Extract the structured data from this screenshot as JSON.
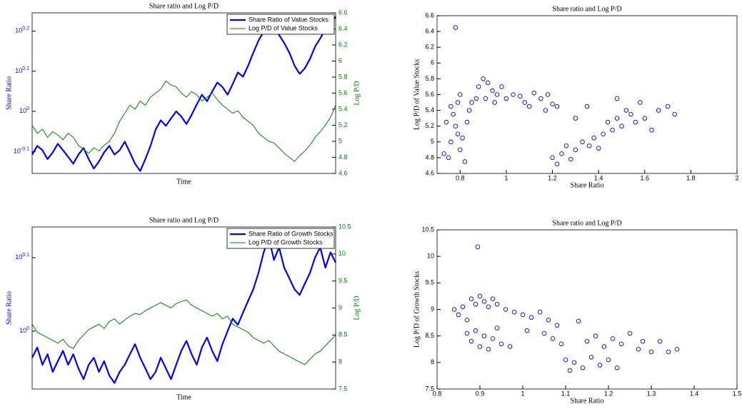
{
  "chart_data": [
    {
      "type": "line",
      "title": "Share ratio and Log P/D",
      "xlabel": "Time",
      "ylabel": "Share Ratio",
      "y2label": "Log P/D",
      "ylog": true,
      "legend": "northeast",
      "ylim": [
        0.7,
        1.76
      ],
      "yticks": [
        {
          "value": 0.794,
          "label": "10",
          "exponent": "-0.1"
        },
        {
          "value": 1,
          "label": "10",
          "exponent": "0"
        },
        {
          "value": 1.259,
          "label": "10",
          "exponent": "0.1"
        },
        {
          "value": 1.585,
          "label": "10",
          "exponent": "0.2"
        }
      ],
      "y2lim": [
        4.6,
        6.6
      ],
      "y2ticks": [
        4.6,
        4.8,
        5,
        5.2,
        5.4,
        5.6,
        5.8,
        6,
        6.2,
        6.4,
        6.6
      ],
      "series": [
        {
          "name": "Share Ratio of Value Stocks",
          "color": "#0000ff",
          "values": [
            0.78,
            0.82,
            0.8,
            0.76,
            0.79,
            0.83,
            0.8,
            0.77,
            0.74,
            0.78,
            0.81,
            0.76,
            0.72,
            0.75,
            0.79,
            0.82,
            0.78,
            0.8,
            0.84,
            0.79,
            0.74,
            0.71,
            0.76,
            0.82,
            0.9,
            0.95,
            0.92,
            0.96,
            1.0,
            0.97,
            0.93,
            0.98,
            1.04,
            1.1,
            1.06,
            1.12,
            1.18,
            1.15,
            1.1,
            1.17,
            1.25,
            1.22,
            1.3,
            1.4,
            1.5,
            1.58,
            1.66,
            1.6,
            1.55,
            1.48,
            1.4,
            1.3,
            1.24,
            1.28,
            1.35,
            1.45,
            1.52,
            1.6,
            1.66,
            1.72
          ]
        },
        {
          "name": "Log P/D of Value Stocks",
          "color": "#008000",
          "axis": "y2",
          "values": [
            5.2,
            5.1,
            5.15,
            5.05,
            5.12,
            5.08,
            5.02,
            5.1,
            5.05,
            4.95,
            4.9,
            4.85,
            4.92,
            4.88,
            4.95,
            5.0,
            5.1,
            5.25,
            5.35,
            5.45,
            5.4,
            5.5,
            5.45,
            5.55,
            5.6,
            5.65,
            5.75,
            5.7,
            5.68,
            5.6,
            5.55,
            5.62,
            5.58,
            5.5,
            5.55,
            5.6,
            5.52,
            5.45,
            5.4,
            5.35,
            5.38,
            5.3,
            5.25,
            5.2,
            5.1,
            5.05,
            5.0,
            4.98,
            4.92,
            4.85,
            4.8,
            4.75,
            4.82,
            4.88,
            4.95,
            5.05,
            5.12,
            5.2,
            5.3,
            5.45
          ]
        }
      ]
    },
    {
      "type": "scatter",
      "title": "Share ratio and Log P/D",
      "xlabel": "Share Ratio",
      "ylabel": "Log P/D of Value Stocks",
      "color": "#0000ff",
      "xlim": [
        0.7,
        2
      ],
      "xticks": [
        0.8,
        1,
        1.2,
        1.4,
        1.6,
        1.8,
        2
      ],
      "ylim": [
        4.6,
        6.6
      ],
      "yticks": [
        4.6,
        4.8,
        5,
        5.2,
        5.4,
        5.6,
        5.8,
        6,
        6.2,
        6.4,
        6.6
      ],
      "x": [
        0.78,
        0.73,
        0.75,
        0.76,
        0.78,
        0.77,
        0.79,
        0.8,
        0.82,
        0.81,
        0.83,
        0.84,
        0.79,
        0.76,
        0.74,
        0.8,
        0.85,
        0.87,
        0.88,
        0.9,
        0.92,
        0.94,
        0.91,
        0.96,
        0.98,
        0.95,
        1.0,
        1.03,
        1.06,
        1.08,
        1.1,
        1.12,
        1.15,
        1.18,
        1.2,
        1.17,
        1.22,
        1.2,
        1.22,
        1.24,
        1.26,
        1.28,
        1.3,
        1.33,
        1.36,
        1.38,
        1.4,
        1.42,
        1.44,
        1.46,
        1.48,
        1.5,
        1.52,
        1.54,
        1.56,
        1.58,
        1.6,
        1.63,
        1.66,
        1.7,
        1.73,
        1.35,
        1.3,
        1.48
      ],
      "values": [
        6.45,
        4.85,
        4.8,
        5.0,
        5.2,
        5.35,
        5.1,
        4.9,
        4.75,
        5.05,
        5.25,
        5.4,
        5.5,
        5.45,
        5.25,
        5.6,
        5.5,
        5.55,
        5.7,
        5.8,
        5.75,
        5.65,
        5.55,
        5.6,
        5.7,
        5.5,
        5.55,
        5.6,
        5.58,
        5.5,
        5.45,
        5.62,
        5.55,
        5.6,
        5.48,
        5.4,
        5.45,
        4.8,
        4.72,
        4.85,
        4.95,
        4.78,
        4.9,
        5.0,
        4.95,
        5.05,
        4.92,
        5.1,
        5.25,
        5.15,
        5.3,
        5.2,
        5.4,
        5.35,
        5.25,
        5.5,
        5.3,
        5.15,
        5.4,
        5.45,
        5.35,
        5.45,
        5.3,
        5.55
      ]
    },
    {
      "type": "line",
      "title": "Share ratio and Log P/D",
      "xlabel": "Time",
      "ylabel": "Share Ratio",
      "y2label": "Log P/D",
      "ylog": true,
      "legend": "northeast",
      "ylim": [
        0.834,
        1.386
      ],
      "yticks": [
        {
          "value": 1,
          "label": "10",
          "exponent": "0"
        },
        {
          "value": 1.259,
          "label": "10",
          "exponent": "0.1"
        }
      ],
      "y2lim": [
        7.5,
        10.5
      ],
      "y2ticks": [
        7.5,
        8,
        8.5,
        9,
        9.5,
        10,
        10.5
      ],
      "series": [
        {
          "name": "Share Ratio of Growth Stocks",
          "color": "#0000ff",
          "values": [
            0.92,
            0.95,
            0.9,
            0.93,
            0.88,
            0.91,
            0.94,
            0.9,
            0.93,
            0.89,
            0.86,
            0.9,
            0.92,
            0.88,
            0.91,
            0.87,
            0.85,
            0.88,
            0.9,
            0.93,
            0.96,
            0.92,
            0.89,
            0.86,
            0.88,
            0.92,
            0.89,
            0.86,
            0.9,
            0.94,
            0.97,
            0.93,
            0.9,
            0.95,
            0.98,
            0.94,
            0.91,
            0.96,
            1.0,
            1.04,
            1.02,
            1.06,
            1.1,
            1.14,
            1.2,
            1.28,
            1.34,
            1.25,
            1.3,
            1.22,
            1.18,
            1.14,
            1.12,
            1.16,
            1.2,
            1.26,
            1.3,
            1.22,
            1.28,
            1.24
          ]
        },
        {
          "name": "Log P/D of Growth Stocks",
          "color": "#008000",
          "axis": "y2",
          "values": [
            8.7,
            8.55,
            8.5,
            8.45,
            8.4,
            8.35,
            8.42,
            8.3,
            8.25,
            8.4,
            8.5,
            8.6,
            8.65,
            8.7,
            8.62,
            8.75,
            8.8,
            8.7,
            8.78,
            8.85,
            8.9,
            8.88,
            8.95,
            9.0,
            9.05,
            9.1,
            9.05,
            9.0,
            9.08,
            9.12,
            9.15,
            9.05,
            9.0,
            8.95,
            8.9,
            8.85,
            8.9,
            8.8,
            8.85,
            8.7,
            8.65,
            8.6,
            8.55,
            8.45,
            8.4,
            8.35,
            8.4,
            8.3,
            8.2,
            8.15,
            8.1,
            8.05,
            8.0,
            7.95,
            8.05,
            8.15,
            8.2,
            8.3,
            8.4,
            8.5
          ]
        }
      ]
    },
    {
      "type": "scatter",
      "title": "Share ratio and Log P/D",
      "xlabel": "Share Ratio",
      "ylabel": "Log P/D of Growth Stocks",
      "color": "#0000ff",
      "xlim": [
        0.8,
        1.5
      ],
      "xticks": [
        0.8,
        0.9,
        1,
        1.1,
        1.2,
        1.3,
        1.4,
        1.5
      ],
      "ylim": [
        7.5,
        10.5
      ],
      "yticks": [
        7.5,
        8,
        8.5,
        9,
        9.5,
        10,
        10.5
      ],
      "x": [
        0.895,
        0.84,
        0.85,
        0.86,
        0.87,
        0.88,
        0.89,
        0.9,
        0.91,
        0.92,
        0.93,
        0.94,
        0.87,
        0.88,
        0.89,
        0.9,
        0.91,
        0.92,
        0.93,
        0.94,
        0.95,
        0.96,
        0.98,
        1.0,
        1.02,
        1.04,
        1.06,
        1.08,
        1.05,
        1.07,
        1.09,
        1.1,
        1.11,
        1.12,
        1.14,
        1.16,
        1.18,
        1.2,
        1.22,
        1.15,
        1.17,
        1.19,
        1.21,
        1.23,
        1.25,
        1.27,
        1.28,
        1.3,
        1.32,
        1.34,
        1.36,
        1.13,
        0.97,
        1.01
      ],
      "values": [
        10.18,
        9.0,
        8.9,
        9.05,
        8.8,
        9.2,
        9.1,
        9.25,
        9.15,
        9.05,
        9.2,
        9.1,
        8.55,
        8.4,
        8.6,
        8.3,
        8.5,
        8.25,
        8.45,
        8.65,
        8.35,
        9.0,
        8.95,
        8.9,
        8.85,
        8.95,
        8.8,
        8.7,
        8.55,
        8.45,
        8.35,
        8.05,
        7.85,
        8.0,
        7.9,
        8.1,
        7.95,
        8.05,
        7.9,
        8.4,
        8.5,
        8.3,
        8.45,
        8.35,
        8.55,
        8.25,
        8.4,
        8.2,
        8.4,
        8.2,
        8.25,
        8.78,
        8.3,
        8.6
      ]
    }
  ]
}
